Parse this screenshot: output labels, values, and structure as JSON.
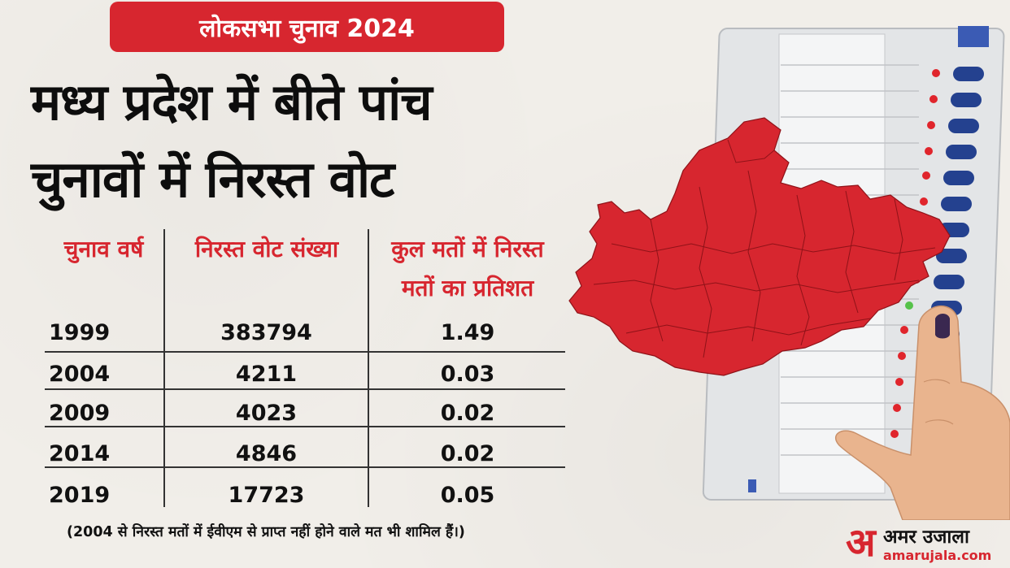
{
  "badge": "लोकसभा चुनाव 2024",
  "headline": {
    "line1": "मध्य प्रदेश में बीते पांच",
    "line2": "चुनावों में निरस्त वोट"
  },
  "table": {
    "headers": {
      "year": "चुनाव वर्ष",
      "count": "निरस्त वोट संख्या",
      "percent_line1": "कुल मतों में निरस्त",
      "percent_line2": "मतों का प्रतिशत"
    },
    "rows": [
      {
        "year": "1999",
        "count": "383794",
        "percent": "1.49"
      },
      {
        "year": "2004",
        "count": "4211",
        "percent": "0.03"
      },
      {
        "year": "2009",
        "count": "4023",
        "percent": "0.02"
      },
      {
        "year": "2014",
        "count": "4846",
        "percent": "0.02"
      },
      {
        "year": "2019",
        "count": "17723",
        "percent": "0.05"
      }
    ]
  },
  "note": "(2004 से निरस्त मतों में ईवीएम से प्राप्त नहीं होने वाले मत भी शामिल हैं।)",
  "illustration": {
    "map_icon": "madhya-pradesh-map-icon",
    "machine_icon": "evm-machine-icon",
    "finger_icon": "voting-finger-icon",
    "map_color": "#d7262f"
  },
  "logo": {
    "mark": "अ",
    "name": "अमर उजाला",
    "url": "amarujala.com"
  },
  "colors": {
    "accent": "#d7262f",
    "text": "#111111",
    "background": "#f1eee9"
  }
}
